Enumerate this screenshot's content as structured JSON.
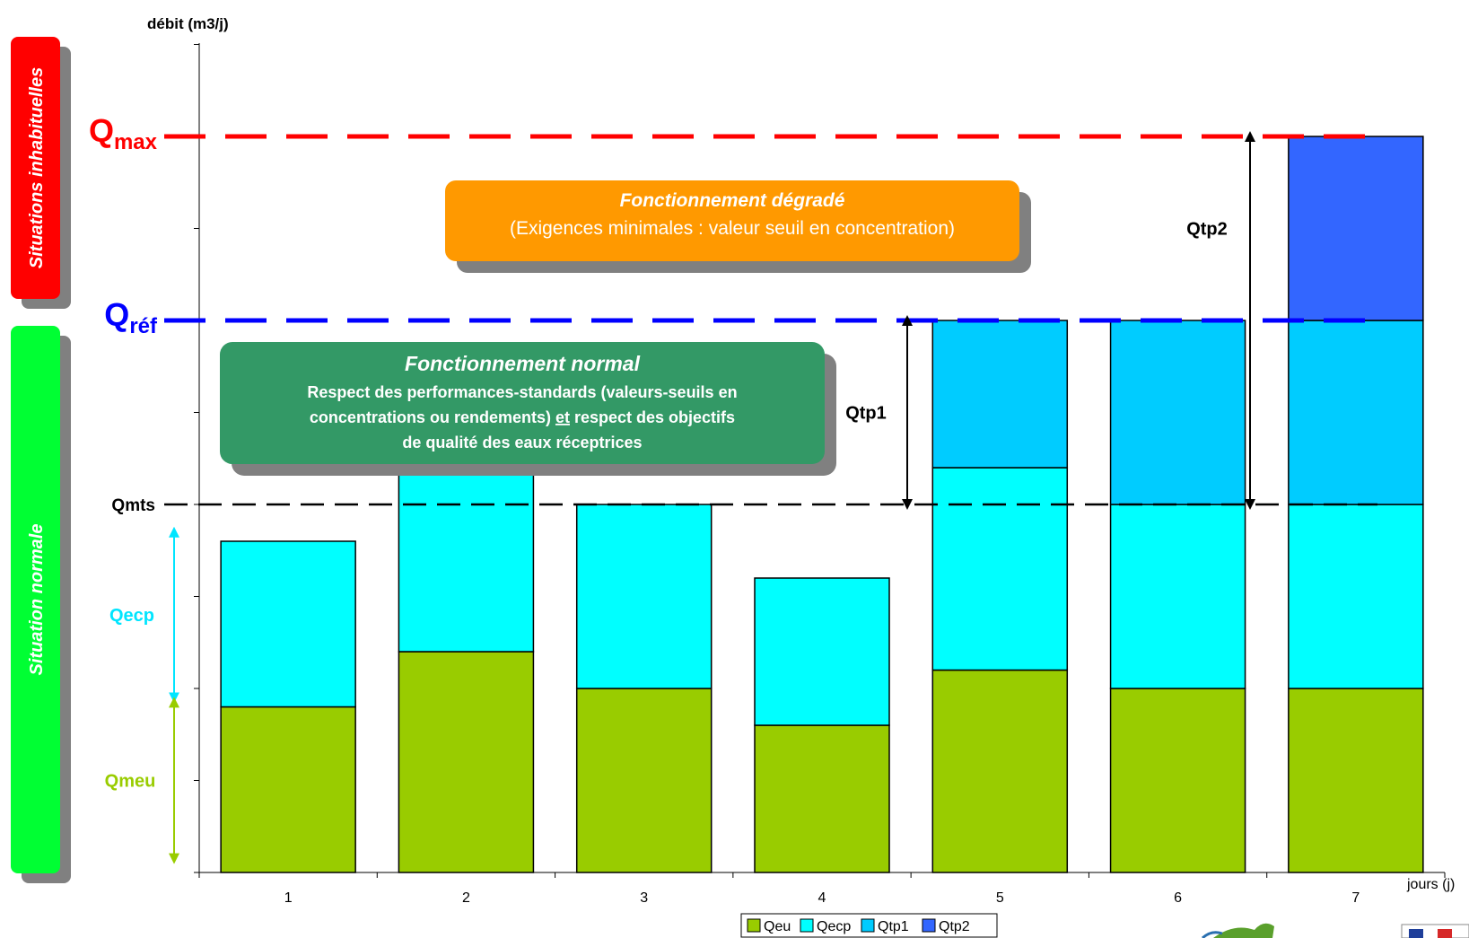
{
  "chart_data": {
    "type": "bar",
    "stacked": true,
    "title": "",
    "ylabel": "débit (m3/j)",
    "xlabel": "jours (j)",
    "ylim": [
      0,
      9
    ],
    "grid": false,
    "legend_position": "bottom",
    "categories": [
      "1",
      "2",
      "3",
      "4",
      "5",
      "6",
      "7"
    ],
    "series": [
      {
        "name": "Qeu",
        "color": "#99CC00",
        "values": [
          1.8,
          2.4,
          2.0,
          1.6,
          2.2,
          2.0,
          2.0
        ]
      },
      {
        "name": "Qecp",
        "color": "#00FFFF",
        "values": [
          1.8,
          2.4,
          2.0,
          1.6,
          2.2,
          2.0,
          2.0
        ]
      },
      {
        "name": "Qtp1",
        "color": "#00CCFF",
        "values": [
          0,
          0,
          0,
          0,
          1.6,
          2.0,
          2.0
        ]
      },
      {
        "name": "Qtp2",
        "color": "#3366FF",
        "values": [
          0,
          0,
          0,
          0,
          0,
          0,
          2.0
        ]
      }
    ],
    "reference_lines": [
      {
        "label": "Q",
        "sub": "max",
        "value": 8.0,
        "color": "#FF0000"
      },
      {
        "label": "Q",
        "sub": "réf",
        "value": 6.0,
        "color": "#0000FF"
      },
      {
        "label": "Qmts",
        "sub": "",
        "value": 4.0,
        "color": "#000000"
      }
    ],
    "range_annotations": [
      {
        "label": "Qecp",
        "color": "#00E5FF",
        "from": 1.9,
        "to": 3.7
      },
      {
        "label": "Qmeu",
        "color": "#99CC00",
        "from": 0.15,
        "to": 1.85
      },
      {
        "label": "Qtp1",
        "color": "#000000",
        "from": 4.0,
        "to": 6.0
      },
      {
        "label": "Qtp2",
        "color": "#000000",
        "from": 4.0,
        "to": 8.0
      }
    ]
  },
  "boxes": {
    "degraded": {
      "title": "Fonctionnement dégradé",
      "text": "(Exigences minimales : valeur seuil en concentration)",
      "color": "#FF9900"
    },
    "normal": {
      "title": "Fonctionnement normal",
      "lines": [
        "Respect des performances-standards (valeurs-seuils en",
        "concentrations ou rendements)",
        "et",
        "respect des objectifs",
        "de qualité des eaux réceptrices"
      ],
      "color": "#339966"
    }
  },
  "side_bands": {
    "top": {
      "label": "Situations inhabituelles",
      "color": "#FF0000"
    },
    "bottom": {
      "label": "Situation normale",
      "color": "#00FF33"
    }
  }
}
